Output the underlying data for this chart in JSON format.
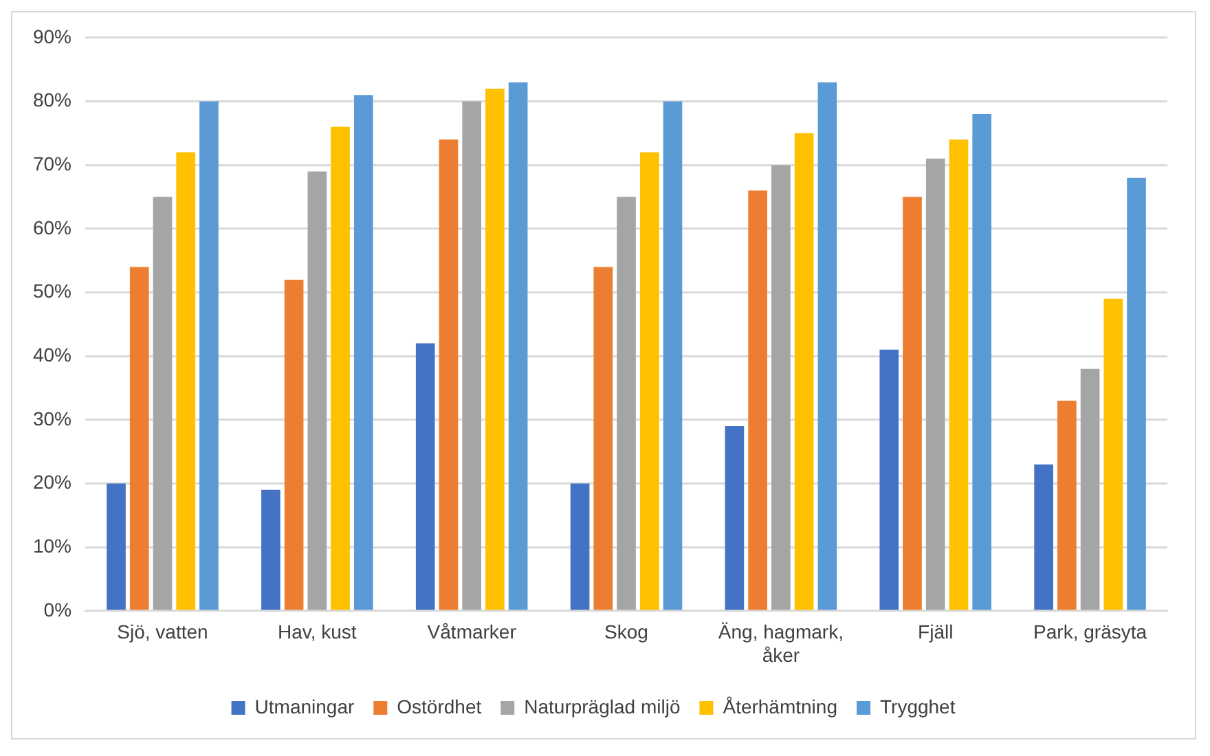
{
  "chart_data": {
    "type": "bar",
    "categories": [
      "Sjö, vatten",
      "Hav, kust",
      "Våtmarker",
      "Skog",
      "Äng, hagmark, åker",
      "Fjäll",
      "Park, gräsyta"
    ],
    "series": [
      {
        "name": "Utmaningar",
        "color": "#4472c4",
        "values": [
          20,
          19,
          42,
          20,
          29,
          41,
          23
        ]
      },
      {
        "name": "Ostördhet",
        "color": "#ed7d31",
        "values": [
          54,
          52,
          74,
          54,
          66,
          65,
          33
        ]
      },
      {
        "name": "Naturpräglad miljö",
        "color": "#a5a5a5",
        "values": [
          65,
          69,
          80,
          65,
          70,
          71,
          38
        ]
      },
      {
        "name": "Återhämtning",
        "color": "#ffc000",
        "values": [
          72,
          76,
          82,
          72,
          75,
          74,
          49
        ]
      },
      {
        "name": "Trygghet",
        "color": "#5b9bd5",
        "values": [
          80,
          81,
          83,
          80,
          83,
          78,
          68
        ]
      }
    ],
    "ylim": [
      0,
      90
    ],
    "yticks": [
      {
        "value": 0,
        "label": "0%"
      },
      {
        "value": 10,
        "label": "10%"
      },
      {
        "value": 20,
        "label": "20%"
      },
      {
        "value": 30,
        "label": "30%"
      },
      {
        "value": 40,
        "label": "40%"
      },
      {
        "value": 50,
        "label": "50%"
      },
      {
        "value": 60,
        "label": "60%"
      },
      {
        "value": 70,
        "label": "70%"
      },
      {
        "value": 80,
        "label": "80%"
      },
      {
        "value": 90,
        "label": "90%"
      }
    ],
    "grid": "y",
    "legend": "bottom"
  }
}
